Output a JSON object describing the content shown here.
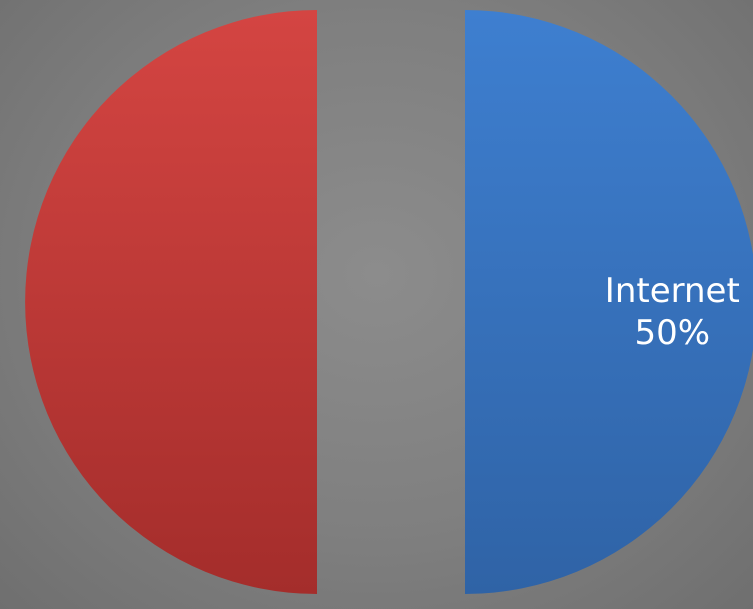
{
  "chart_data": {
    "type": "pie",
    "exploded": true,
    "slices": [
      {
        "label": "Internet",
        "value": 50,
        "value_label": "50%",
        "color_top": "#3e7fd0",
        "color_bottom": "#2f63a6",
        "show_label": true
      },
      {
        "label": "",
        "value": 50,
        "value_label": "",
        "color_top": "#d44542",
        "color_bottom": "#a42d2b",
        "show_label": false
      }
    ]
  },
  "colors": {
    "background": "#7f7f7f"
  }
}
